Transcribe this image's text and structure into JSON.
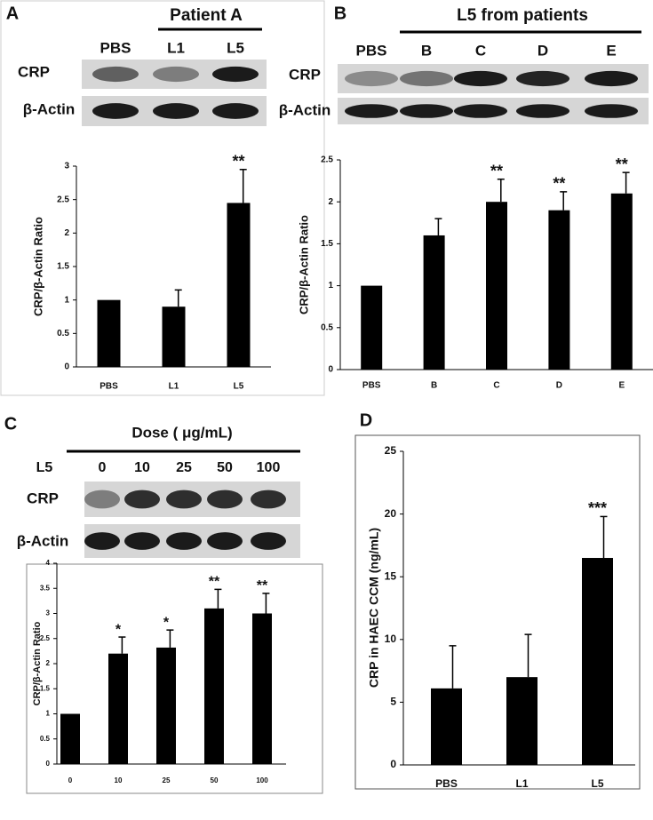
{
  "blots": [
    {
      "panel": "A",
      "header": "Patient A",
      "lanes": [
        "PBS",
        "L1",
        "L5"
      ],
      "rows": [
        "CRP",
        "β-Actin"
      ]
    },
    {
      "panel": "B",
      "header": "L5 from patients",
      "lanes": [
        "PBS",
        "B",
        "C",
        "D",
        "E"
      ],
      "rows": [
        "CRP",
        "β-Actin"
      ]
    },
    {
      "panel": "C",
      "header": "Dose ( μg/mL)",
      "treatment": "L5",
      "lanes": [
        "0",
        "10",
        "25",
        "50",
        "100"
      ],
      "rows": [
        "CRP",
        "β-Actin"
      ]
    }
  ],
  "chart_data": [
    {
      "type": "bar",
      "ylabel": "CRP/β-Actin Ratio",
      "categories": [
        "PBS",
        "L1",
        "L5"
      ],
      "values": [
        1,
        0.9,
        2.45
      ],
      "errors": [
        null,
        0.25,
        0.5
      ],
      "annotations": [
        null,
        null,
        "**"
      ],
      "color": "#000000",
      "ylim": [
        0,
        3
      ],
      "yticks": [
        0,
        0.5,
        1,
        1.5,
        2,
        2.5,
        3
      ]
    },
    {
      "type": "bar",
      "ylabel": "CRP/β-Actin Ratio",
      "categories": [
        "PBS",
        "B",
        "C",
        "D",
        "E"
      ],
      "values": [
        1,
        1.6,
        2.0,
        1.9,
        2.1
      ],
      "errors": [
        null,
        0.2,
        0.27,
        0.22,
        0.25
      ],
      "annotations": [
        null,
        null,
        "**",
        "**",
        "**"
      ],
      "color": "#000000",
      "ylim": [
        0,
        2.5
      ],
      "yticks": [
        0,
        0.5,
        1,
        1.5,
        2,
        2.5
      ]
    },
    {
      "type": "bar",
      "ylabel": "CRP/β-Actin Ratio",
      "categories": [
        "0",
        "10",
        "25",
        "50",
        "100"
      ],
      "values": [
        1,
        2.2,
        2.32,
        3.1,
        3.0
      ],
      "errors": [
        null,
        0.33,
        0.35,
        0.38,
        0.4
      ],
      "annotations": [
        null,
        "*",
        "*",
        "**",
        "**"
      ],
      "color": "#000000",
      "ylim": [
        0,
        4
      ],
      "yticks": [
        0,
        0.5,
        1,
        1.5,
        2,
        2.5,
        3,
        3.5,
        4
      ]
    },
    {
      "type": "bar",
      "panel": "D",
      "ylabel": "CRP in HAEC CCM (ng/mL)",
      "categories": [
        "PBS",
        "L1",
        "L5"
      ],
      "values": [
        6.1,
        7.0,
        16.5
      ],
      "errors": [
        3.4,
        3.4,
        3.3
      ],
      "annotations": [
        null,
        null,
        "***"
      ],
      "color": "#000000",
      "ylim": [
        0,
        25
      ],
      "yticks": [
        0,
        5,
        10,
        15,
        20,
        25
      ]
    }
  ]
}
